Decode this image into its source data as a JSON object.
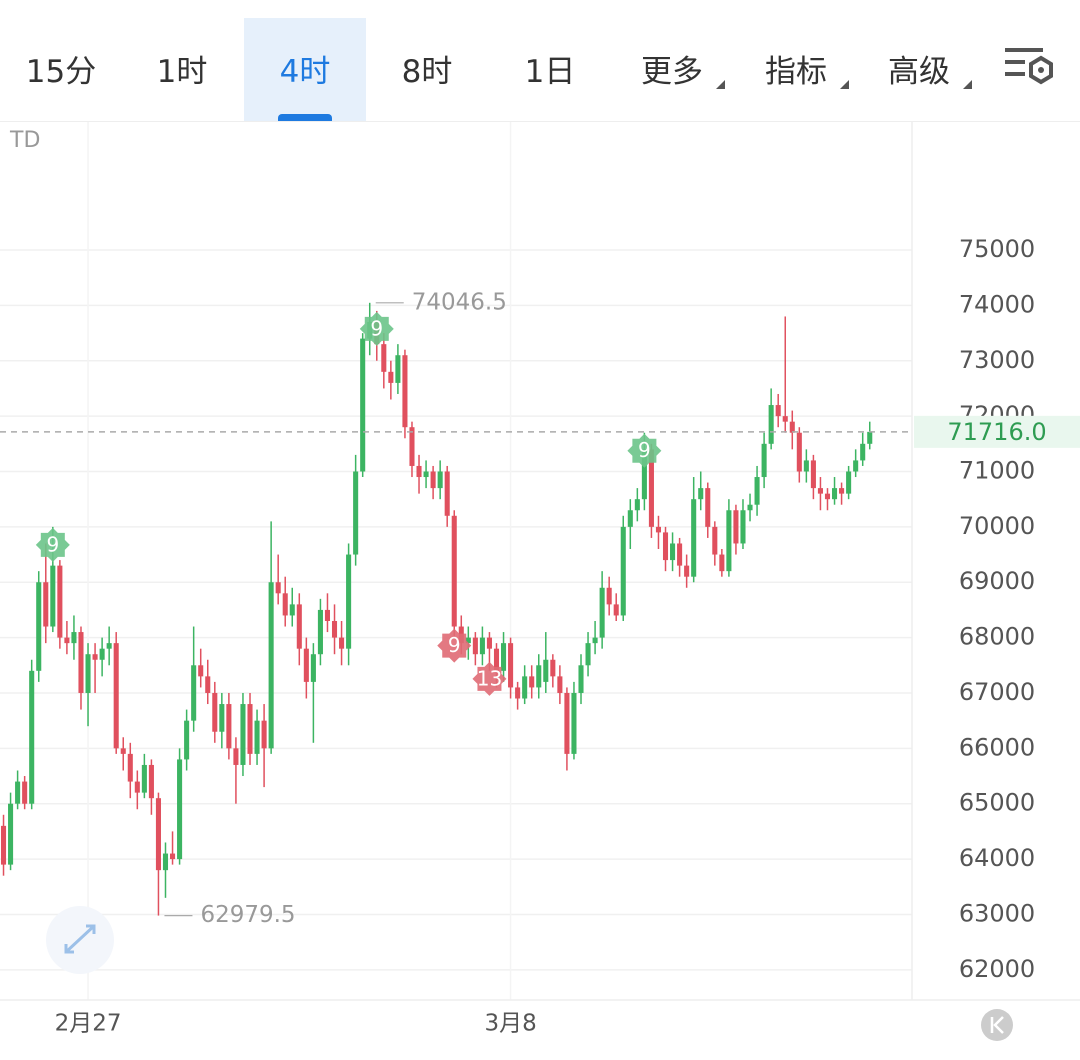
{
  "toolbar": {
    "tabs": [
      {
        "label": "15分"
      },
      {
        "label": "1时"
      },
      {
        "label": "4时"
      },
      {
        "label": "8时"
      },
      {
        "label": "1日"
      },
      {
        "label": "更多",
        "dropdown": true
      },
      {
        "label": "指标",
        "dropdown": true
      },
      {
        "label": "高级",
        "dropdown": true
      }
    ],
    "active": 2
  },
  "chart_data": {
    "type": "candlestick",
    "indicator": "TD",
    "up_color": "#3cb462",
    "down_color": "#e0505e",
    "ylim": [
      61455,
      77312
    ],
    "yticks": [
      62000,
      63000,
      64000,
      65000,
      66000,
      67000,
      68000,
      69000,
      70000,
      71000,
      72000,
      73000,
      74000,
      75000
    ],
    "xlim": [
      -0.5,
      129
    ],
    "xticks": [
      {
        "value": 12,
        "label": "2月27"
      },
      {
        "value": 72,
        "label": "3月8"
      }
    ],
    "last_price": {
      "value": 71716,
      "label": "71716.0"
    },
    "annotations": [
      {
        "index": 52,
        "value": 74046.5,
        "label": "74046.5"
      },
      {
        "index": 22,
        "value": 62979.5,
        "label": "62979.5"
      }
    ],
    "td_marks": [
      {
        "index": 7,
        "label": "9",
        "side": "high"
      },
      {
        "index": 53,
        "label": "9",
        "side": "high"
      },
      {
        "index": 91,
        "label": "9",
        "side": "high"
      },
      {
        "index": 64,
        "label": "9",
        "side": "low"
      },
      {
        "index": 69,
        "label": "13",
        "side": "low"
      }
    ],
    "ohlc": [
      [
        64600,
        64800,
        63700,
        63900
      ],
      [
        63900,
        65200,
        63800,
        65000
      ],
      [
        65000,
        65600,
        64900,
        65400
      ],
      [
        65400,
        65500,
        64900,
        65000
      ],
      [
        65000,
        67600,
        64900,
        67400
      ],
      [
        67400,
        69200,
        67200,
        69000
      ],
      [
        69000,
        69700,
        67900,
        68200
      ],
      [
        68200,
        70000,
        68100,
        69300
      ],
      [
        69300,
        69400,
        67800,
        68000
      ],
      [
        68000,
        68300,
        67700,
        67900
      ],
      [
        67900,
        68400,
        67600,
        68100
      ],
      [
        68100,
        68200,
        66700,
        67000
      ],
      [
        67000,
        67900,
        66400,
        67700
      ],
      [
        67700,
        67900,
        67000,
        67600
      ],
      [
        67600,
        68000,
        67300,
        67800
      ],
      [
        67800,
        68200,
        67500,
        67900
      ],
      [
        67900,
        68100,
        65900,
        66000
      ],
      [
        66000,
        66200,
        65600,
        65900
      ],
      [
        65900,
        66100,
        65100,
        65400
      ],
      [
        65400,
        65600,
        64900,
        65200
      ],
      [
        65200,
        65900,
        65100,
        65700
      ],
      [
        65700,
        65800,
        64800,
        65100
      ],
      [
        65100,
        65200,
        62979.5,
        63800
      ],
      [
        63800,
        64300,
        63300,
        64100
      ],
      [
        64100,
        64500,
        63900,
        64000
      ],
      [
        64000,
        66000,
        63900,
        65800
      ],
      [
        65800,
        66700,
        65600,
        66500
      ],
      [
        66500,
        68200,
        66300,
        67500
      ],
      [
        67500,
        67800,
        67100,
        67300
      ],
      [
        67300,
        67600,
        66800,
        67000
      ],
      [
        67000,
        67200,
        66100,
        66300
      ],
      [
        66300,
        67000,
        66000,
        66800
      ],
      [
        66800,
        67000,
        65800,
        66000
      ],
      [
        66000,
        66200,
        65000,
        65700
      ],
      [
        65700,
        67000,
        65500,
        66800
      ],
      [
        66800,
        67000,
        65700,
        65900
      ],
      [
        65900,
        66700,
        65700,
        66500
      ],
      [
        66500,
        66800,
        65300,
        66000
      ],
      [
        66000,
        70100,
        65900,
        69000
      ],
      [
        69000,
        69500,
        68600,
        68800
      ],
      [
        68800,
        69100,
        68200,
        68400
      ],
      [
        68400,
        68900,
        68200,
        68600
      ],
      [
        68600,
        68800,
        67500,
        67800
      ],
      [
        67800,
        68000,
        66900,
        67200
      ],
      [
        67200,
        67900,
        66100,
        67700
      ],
      [
        67700,
        68700,
        67500,
        68500
      ],
      [
        68500,
        68800,
        68100,
        68300
      ],
      [
        68300,
        68600,
        67700,
        68000
      ],
      [
        68000,
        68300,
        67500,
        67800
      ],
      [
        67800,
        69700,
        67500,
        69500
      ],
      [
        69500,
        71300,
        69300,
        71000
      ],
      [
        71000,
        73500,
        70900,
        73400
      ],
      [
        73400,
        74046.5,
        73100,
        73700
      ],
      [
        73700,
        73900,
        73000,
        73300
      ],
      [
        73300,
        73500,
        72500,
        72800
      ],
      [
        72800,
        73000,
        72300,
        72600
      ],
      [
        72600,
        73300,
        72400,
        73100
      ],
      [
        73100,
        73200,
        71600,
        71800
      ],
      [
        71800,
        71900,
        70900,
        71100
      ],
      [
        71100,
        71300,
        70600,
        70900
      ],
      [
        70900,
        71200,
        70700,
        71000
      ],
      [
        71000,
        71100,
        70500,
        70700
      ],
      [
        70700,
        71200,
        70500,
        71000
      ],
      [
        71000,
        71100,
        70000,
        70200
      ],
      [
        70200,
        70300,
        68000,
        68200
      ],
      [
        68200,
        68400,
        67700,
        67900
      ],
      [
        67900,
        68200,
        67600,
        68000
      ],
      [
        68000,
        68100,
        67500,
        67700
      ],
      [
        67700,
        68200,
        67500,
        68000
      ],
      [
        68000,
        68100,
        67400,
        67800
      ],
      [
        67800,
        67900,
        67100,
        67400
      ],
      [
        67400,
        68100,
        67200,
        67900
      ],
      [
        67900,
        68000,
        66900,
        67100
      ],
      [
        67100,
        67200,
        66700,
        66900
      ],
      [
        66900,
        67500,
        66800,
        67300
      ],
      [
        67300,
        67500,
        66900,
        67100
      ],
      [
        67100,
        67700,
        66900,
        67500
      ],
      [
        67200,
        68100,
        67000,
        67600
      ],
      [
        67600,
        67700,
        67100,
        67300
      ],
      [
        67300,
        67500,
        66800,
        67000
      ],
      [
        67000,
        67100,
        65600,
        65900
      ],
      [
        65900,
        67200,
        65800,
        67000
      ],
      [
        67000,
        67700,
        66800,
        67500
      ],
      [
        67500,
        68100,
        67300,
        67900
      ],
      [
        67900,
        68300,
        67700,
        68000
      ],
      [
        68000,
        69200,
        67800,
        68900
      ],
      [
        68900,
        69100,
        68400,
        68600
      ],
      [
        68600,
        68800,
        68300,
        68400
      ],
      [
        68400,
        70200,
        68300,
        70000
      ],
      [
        70000,
        70500,
        69600,
        70300
      ],
      [
        70300,
        70700,
        70100,
        70500
      ],
      [
        70500,
        71700,
        70300,
        71400
      ],
      [
        71400,
        71500,
        69800,
        70000
      ],
      [
        70000,
        70200,
        69600,
        69900
      ],
      [
        69900,
        70000,
        69200,
        69400
      ],
      [
        69400,
        69900,
        69200,
        69700
      ],
      [
        69700,
        69800,
        69100,
        69300
      ],
      [
        69300,
        69500,
        68900,
        69100
      ],
      [
        69100,
        70900,
        69000,
        70500
      ],
      [
        70500,
        71000,
        70300,
        70700
      ],
      [
        70700,
        70800,
        69800,
        70000
      ],
      [
        70000,
        70100,
        69300,
        69500
      ],
      [
        69500,
        69600,
        69100,
        69200
      ],
      [
        69200,
        70500,
        69100,
        70300
      ],
      [
        70300,
        70400,
        69500,
        69700
      ],
      [
        69700,
        70500,
        69600,
        70300
      ],
      [
        70300,
        70600,
        70100,
        70400
      ],
      [
        70400,
        71100,
        70200,
        70900
      ],
      [
        70900,
        71700,
        70700,
        71500
      ],
      [
        71500,
        72500,
        71400,
        72200
      ],
      [
        72200,
        72400,
        71800,
        72000
      ],
      [
        72000,
        73800,
        71700,
        71900
      ],
      [
        71900,
        72100,
        71400,
        71700
      ],
      [
        71700,
        71800,
        70800,
        71000
      ],
      [
        71000,
        71400,
        70800,
        71200
      ],
      [
        71200,
        71300,
        70500,
        70700
      ],
      [
        70700,
        70900,
        70300,
        70600
      ],
      [
        70600,
        70700,
        70300,
        70500
      ],
      [
        70500,
        70900,
        70400,
        70700
      ],
      [
        70700,
        70800,
        70400,
        70600
      ],
      [
        70600,
        71100,
        70500,
        71000
      ],
      [
        71000,
        71400,
        70900,
        71200
      ],
      [
        71200,
        71700,
        71100,
        71500
      ],
      [
        71500,
        71900,
        71400,
        71716
      ]
    ]
  }
}
